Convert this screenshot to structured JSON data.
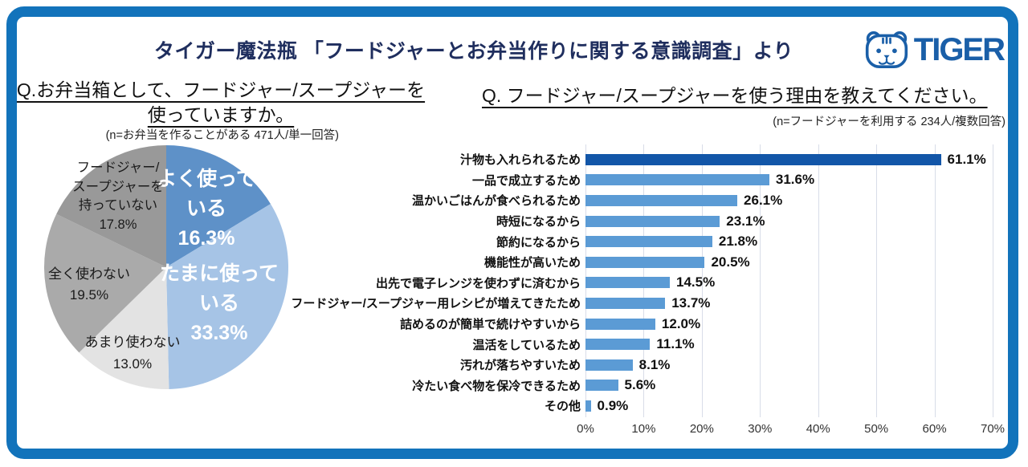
{
  "header": {
    "title": "タイガー魔法瓶 「フードジャーとお弁当作りに関する意識調査」より",
    "logo": {
      "brand": "TIGER"
    }
  },
  "left_panel": {
    "question_line1": "Q.お弁当箱として、フードジャー/スープジャーを",
    "question_line2": "使っていますか。",
    "note": "(n=お弁当を作ることがある 471人/単一回答)"
  },
  "right_panel": {
    "question": "Q. フードジャー/スープジャーを使う理由を教えてください。",
    "note": "(n=フードジャーを利用する 234人/複数回答)"
  },
  "colors": {
    "frame": "#1273bb",
    "title_text": "#1f2e5e",
    "logo_blue": "#1a5fa8",
    "bar_highlight": "#1256a8",
    "bar_primary": "#5b9bd5",
    "gridline": "#d8dde8"
  },
  "chart_data": [
    {
      "type": "pie",
      "title": "お弁当箱として、フードジャー/スープジャーを使っていますか。",
      "labels": [
        "よく使っている",
        "たまに使っている",
        "あまり使わない",
        "全く使わない",
        "フードジャー/スープジャーを持っていない"
      ],
      "values": [
        16.3,
        33.3,
        13.0,
        19.5,
        17.8
      ],
      "colors": [
        "#5e91c8",
        "#a6c4e6",
        "#e3e3e3",
        "#aaaaaa",
        "#999999"
      ],
      "start_angle": "top",
      "direction": "clockwise",
      "label_blocks": [
        {
          "lines": [
            "よく使って",
            "いる",
            "16.3%"
          ]
        },
        {
          "lines": [
            "たまに使って",
            "いる",
            "33.3%"
          ]
        },
        {
          "lines": [
            "フードジャー/",
            "スープジャーを",
            "持っていない",
            "17.8%"
          ]
        },
        {
          "lines": [
            "全く使わない",
            "19.5%"
          ]
        },
        {
          "lines": [
            "あまり使わない",
            "13.0%"
          ]
        }
      ]
    },
    {
      "type": "bar",
      "orientation": "horizontal",
      "title": "フードジャー/スープジャーを使う理由を教えてください。",
      "categories": [
        "汁物も入れられるため",
        "一品で成立するため",
        "温かいごはんが食べられるため",
        "時短になるから",
        "節約になるから",
        "機能性が高いため",
        "出先で電子レンジを使わずに済むから",
        "フードジャー/スープジャー用レシピが増えてきたため",
        "詰めるのが簡単で続けやすいから",
        "温活をしているため",
        "汚れが落ちやすいため",
        "冷たい食べ物を保冷できるため",
        "その他"
      ],
      "values": [
        61.1,
        31.6,
        26.1,
        23.1,
        21.8,
        20.5,
        14.5,
        13.7,
        12.0,
        11.1,
        8.1,
        5.6,
        0.9
      ],
      "value_labels": [
        "61.1%",
        "31.6%",
        "26.1%",
        "23.1%",
        "21.8%",
        "20.5%",
        "14.5%",
        "13.7%",
        "12.0%",
        "11.1%",
        "8.1%",
        "5.6%",
        "0.9%"
      ],
      "bar_colors": [
        "#1256a8",
        "#5b9bd5",
        "#5b9bd5",
        "#5b9bd5",
        "#5b9bd5",
        "#5b9bd5",
        "#5b9bd5",
        "#5b9bd5",
        "#5b9bd5",
        "#5b9bd5",
        "#5b9bd5",
        "#5b9bd5",
        "#5b9bd5"
      ],
      "xlim": [
        0,
        70
      ],
      "tick_values": [
        0,
        10,
        20,
        30,
        40,
        50,
        60,
        70
      ],
      "x_ticks": [
        "0%",
        "10%",
        "20%",
        "30%",
        "40%",
        "50%",
        "60%",
        "70%"
      ],
      "grid": true,
      "legend": "none"
    }
  ]
}
